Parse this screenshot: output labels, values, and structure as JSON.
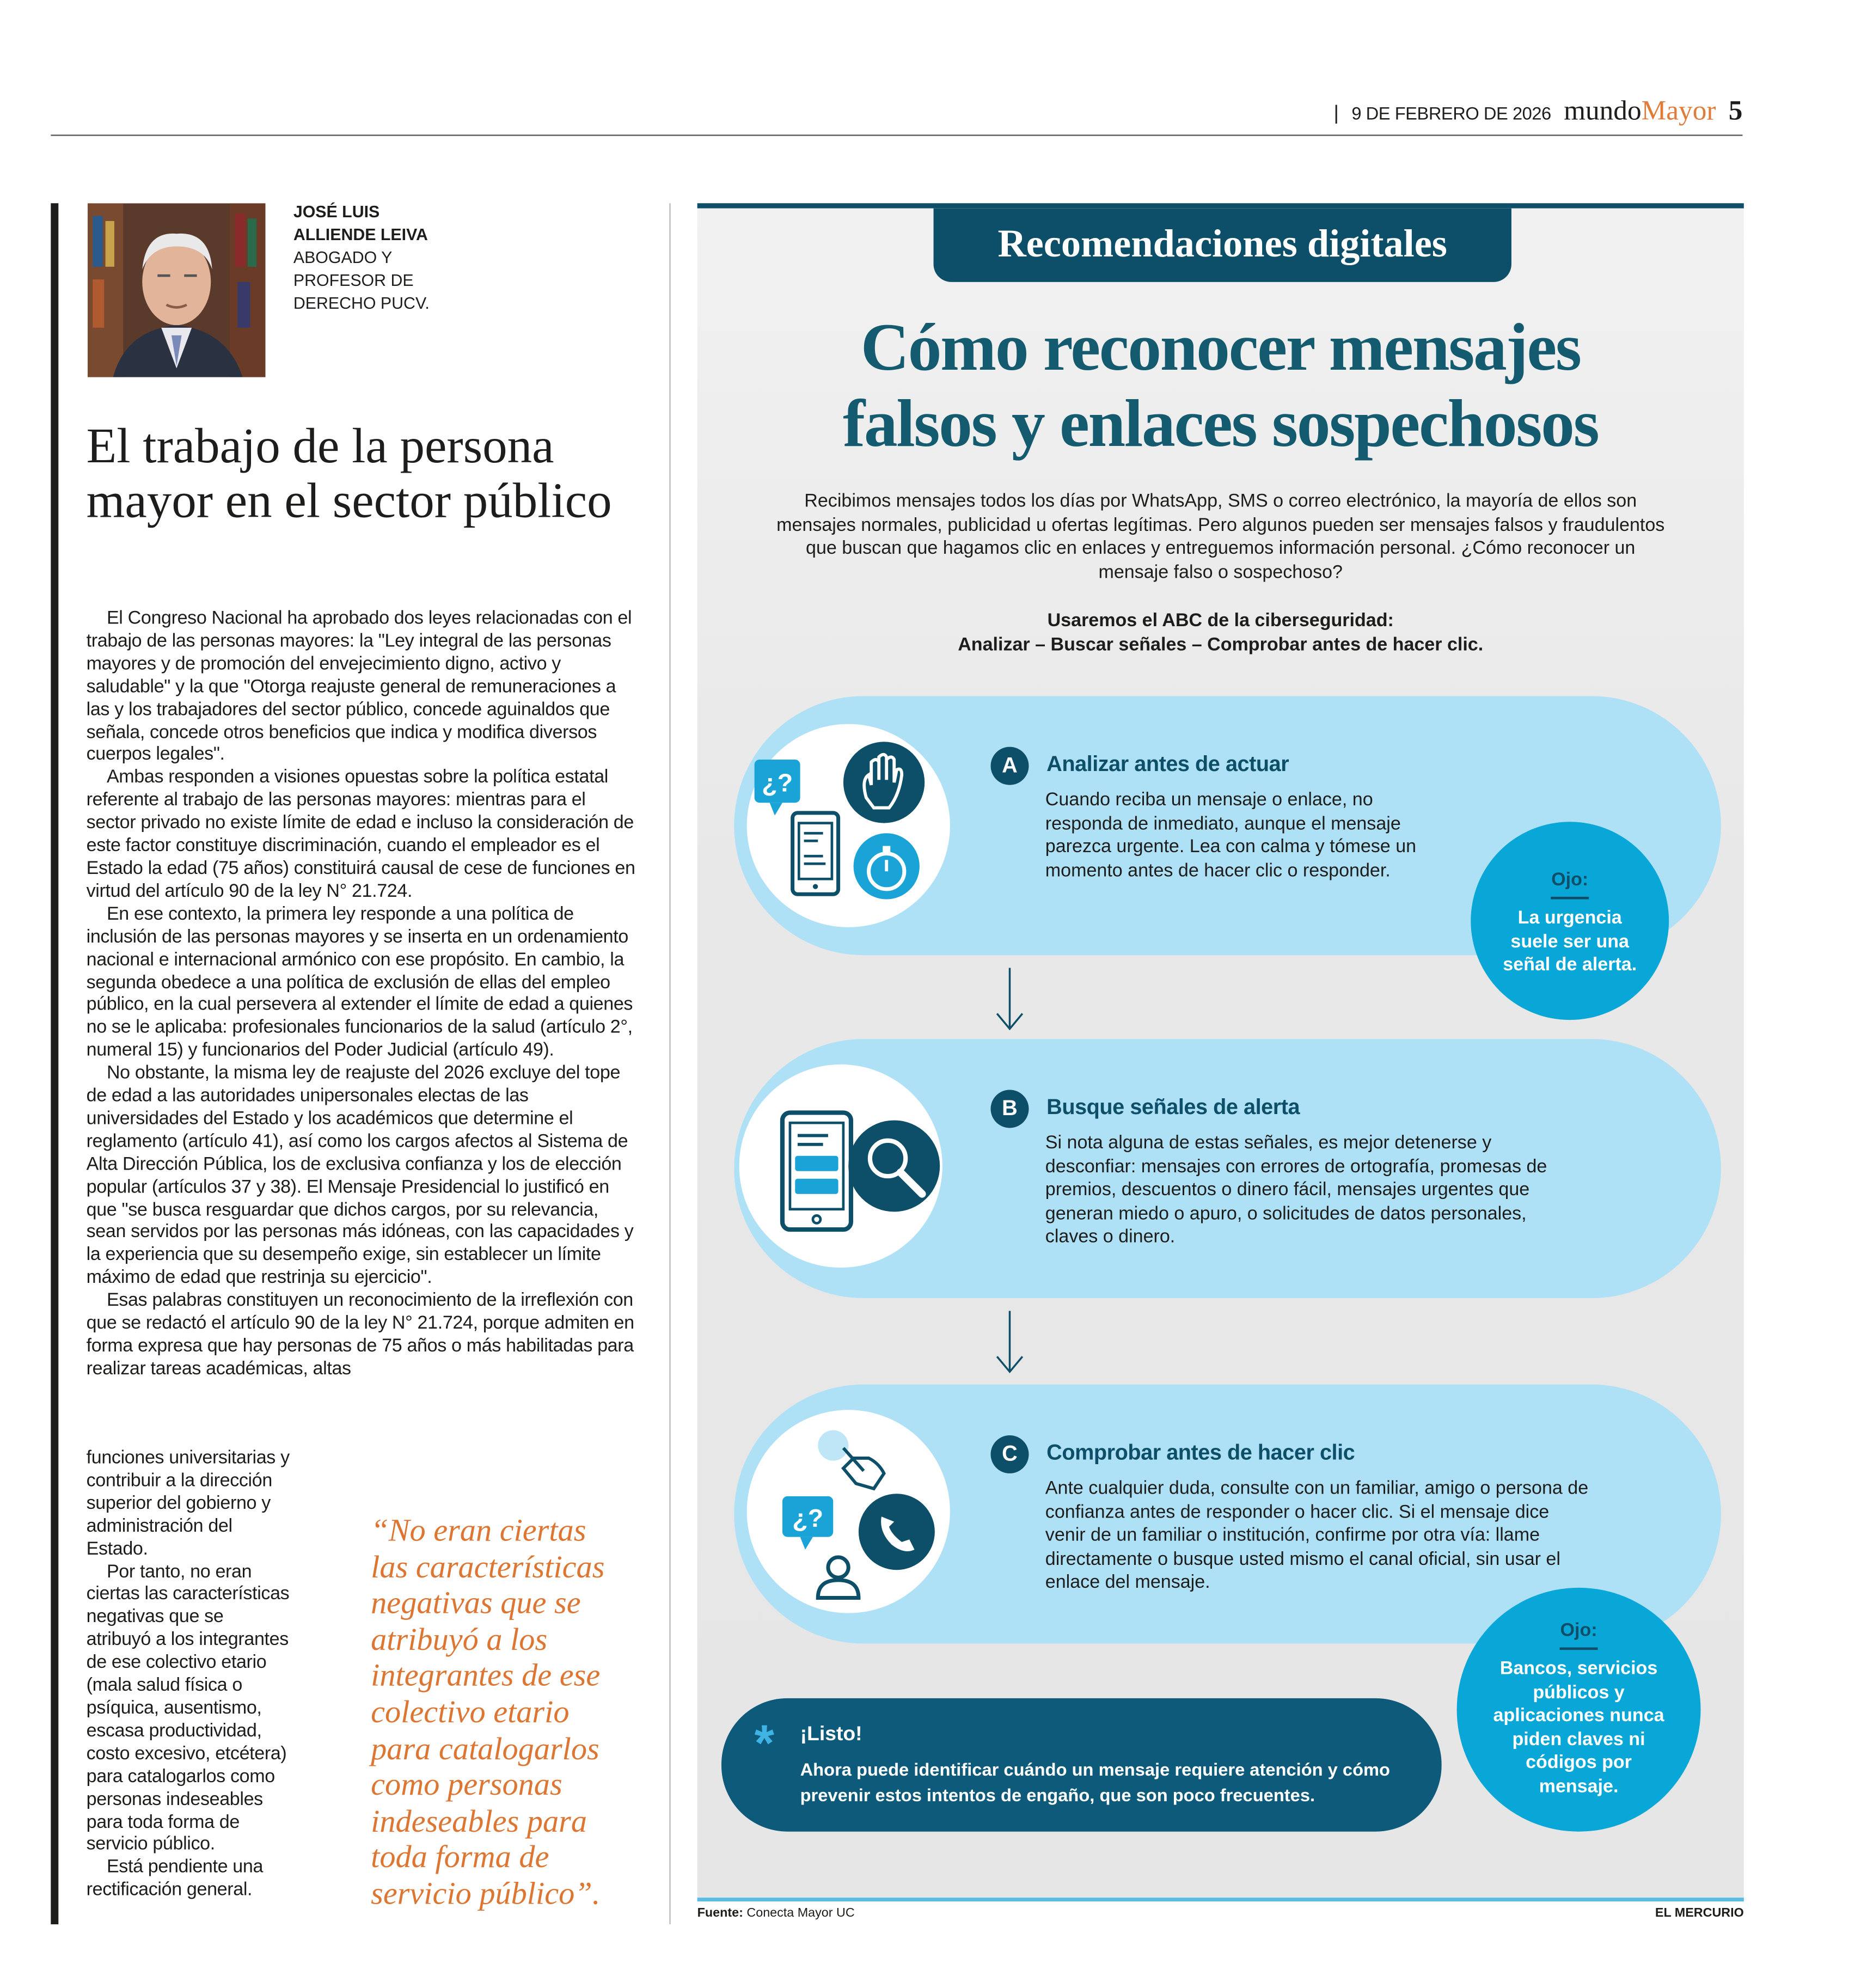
{
  "header": {
    "separator": "|",
    "date": "9 DE FEBRERO DE 2026",
    "brand_a": "mundo",
    "brand_b": "Mayor",
    "page_number": "5"
  },
  "column": {
    "author": {
      "name_line1": "JOSÉ LUIS",
      "name_line2": "ALLIENDE LEIVA",
      "role_line1": "ABOGADO Y",
      "role_line2": "PROFESOR DE",
      "role_line3": "DERECHO PUCV."
    },
    "title": "El trabajo de la persona mayor en el sector público",
    "paragraphs_top": [
      "El Congreso Nacional ha aprobado dos leyes relacionadas con el trabajo de las personas mayores: la \"Ley integral de las personas mayores y de promoción del envejecimiento digno, activo y saludable\" y la que \"Otorga reajuste general de remuneraciones a las y los trabajadores del sector público, concede aguinaldos que señala, concede otros beneficios que indica y modifica diversos cuerpos legales\".",
      "Ambas responden a visiones opuestas sobre la política estatal referente al trabajo de las personas mayores: mientras para el sector privado no existe límite de edad e incluso la consideración de este factor constituye discriminación, cuando el empleador es el Estado la edad (75 años) constituirá causal de cese de funciones en virtud del artículo 90 de la ley N° 21.724.",
      "En ese contexto, la primera ley responde a una política de inclusión de las personas mayores y se inserta en un ordenamiento nacional e internacional armónico con ese propósito. En cambio, la segunda obedece a una política de exclusión de ellas del empleo público, en la cual persevera al extender el límite de edad a quienes no se le aplicaba: profesionales funcionarios de la salud (artículo 2°, numeral 15) y funcionarios del Poder Judicial (artículo 49).",
      "No obstante, la misma ley de reajuste del 2026 excluye del tope de edad a las autoridades unipersonales electas de las universidades del Estado y los académicos que determine el reglamento (artículo 41), así como los cargos afectos al Sistema de Alta Dirección Pública, los de exclusiva confianza y los de elección popular (artículos 37 y 38). El Mensaje Presidencial lo justificó en que \"se busca resguardar que dichos cargos, por su relevancia, sean servidos por las personas más idóneas, con las capacidades y la experiencia que su desempeño exige, sin establecer un límite máximo de edad que restrinja su ejercicio\".",
      "Esas palabras constituyen un reconocimiento de la irreflexión con que se redactó el artículo 90 de la ley N° 21.724, porque admiten en forma expresa que hay personas de 75 años o más habilitadas para realizar tareas académicas, altas"
    ],
    "paragraph_continuation": "funciones universitarias y contribuir a la dirección superior del gobierno y administración del Estado.",
    "paragraphs_bottom": [
      "Por tanto, no eran ciertas las características negativas que se atribuyó a los integrantes de ese colectivo etario (mala salud física o psíquica, ausentismo, escasa productividad, costo excesivo, etcétera) para catalogarlos como personas indeseables para toda forma de servicio público.",
      "Está pendiente una rectificación general."
    ],
    "quote_lines": [
      "“No eran ciertas",
      "las características",
      "negativas que se",
      "atribuyó a los",
      "integrantes de ese",
      "colectivo etario",
      "para catalogarlos",
      "como personas",
      "indeseables para",
      "toda forma de",
      "servicio público”."
    ]
  },
  "infographic": {
    "tab": "Recomendaciones digitales",
    "title_line1": "Cómo reconocer mensajes",
    "title_line2": "falsos y enlaces sospechosos",
    "intro": "Recibimos mensajes todos los días por WhatsApp, SMS o correo electrónico, la mayoría de ellos son mensajes normales, publicidad u ofertas legítimas. Pero algunos pueden ser mensajes falsos y fraudulentos que buscan que hagamos clic en enlaces y entreguemos información personal. ¿Cómo reconocer un mensaje falso o sospechoso?",
    "abc_line1": "Usaremos el ABC de la ciberseguridad:",
    "abc_line2": "Analizar – Buscar señales – Comprobar antes de hacer clic.",
    "steps": [
      {
        "letter": "A",
        "title": "Analizar antes de actuar",
        "text": "Cuando reciba un mensaje o enlace, no responda de inmediato, aunque el mensaje parezca urgente. Lea con calma y tómese un momento antes de hacer clic o responder.",
        "icon": "phone-hand-stopwatch-icon",
        "bubble": "¿?"
      },
      {
        "letter": "B",
        "title": "Busque señales de alerta",
        "text": "Si nota alguna de estas señales, es mejor detenerse y desconfiar: mensajes con errores de ortografía, promesas de premios, descuentos o dinero fácil, mensajes urgentes que generan miedo o apuro, o solicitudes de datos personales, claves o dinero.",
        "icon": "phone-magnifier-icon"
      },
      {
        "letter": "C",
        "title": "Comprobar antes de hacer clic",
        "text": "Ante cualquier duda, consulte con un familiar, amigo o persona de confianza antes de responder o hacer clic. Si el mensaje dice venir de un familiar o institución, confirme por otra vía: llame directamente o busque usted mismo el canal oficial, sin usar el enlace del mensaje.",
        "icon": "click-person-phone-icon",
        "bubble": "¿?"
      }
    ],
    "ojo1": {
      "label": "Ojo:",
      "text": "La urgencia suele ser una señal de alerta."
    },
    "ojo2": {
      "label": "Ojo:",
      "text": "Bancos, servicios públicos y aplicaciones nunca piden claves ni códigos por mensaje."
    },
    "listo": {
      "symbol": "*",
      "title": "¡Listo!",
      "text": "Ahora puede identificar cuándo un mensaje requiere atención y cómo prevenir estos intentos de engaño, que son poco frecuentes."
    },
    "source_label": "Fuente:",
    "source": "Conecta Mayor UC",
    "credit": "EL MERCURIO"
  },
  "colors": {
    "dark_teal": "#0d4f68",
    "pill_blue": "#aee0f6",
    "ojo_blue": "#09a6d8",
    "quote_orange": "#dc7632",
    "brand_orange": "#e07b39"
  }
}
